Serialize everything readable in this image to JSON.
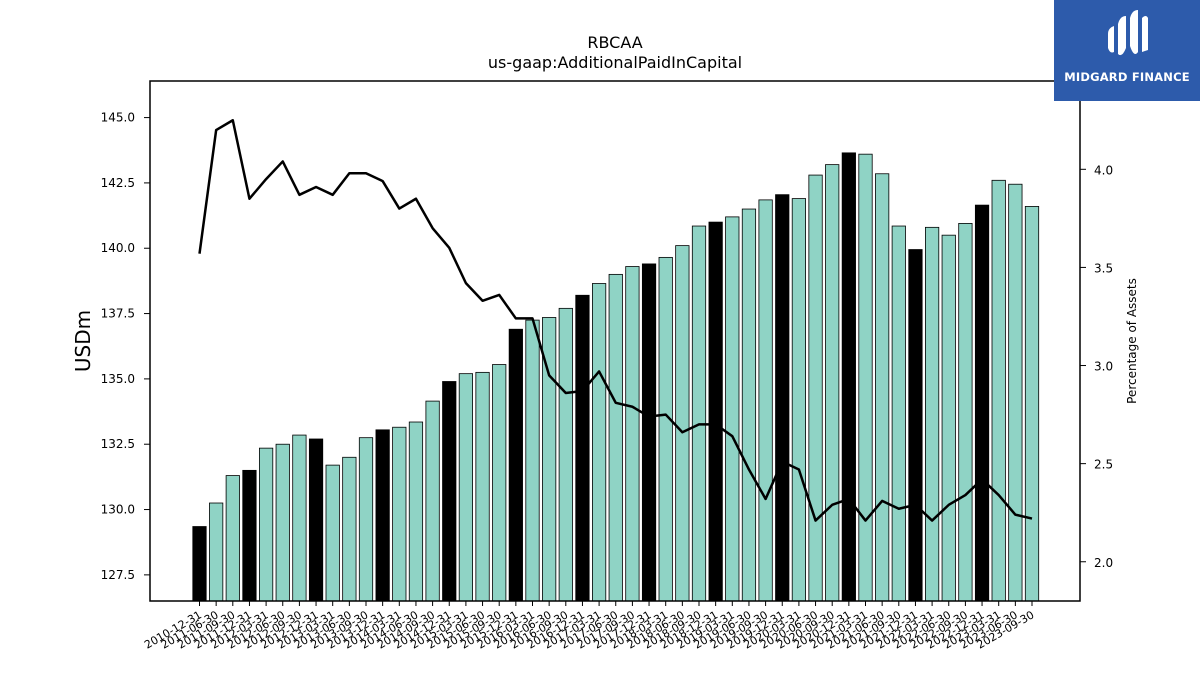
{
  "chart_data": {
    "type": "bar",
    "title": "RBCAA",
    "subtitle": "us-gaap:AdditionalPaidInCapital",
    "ylabel": "USDm",
    "y2label": "Percentage of Assets",
    "ylim": [
      126.5,
      146.4
    ],
    "y2lim": [
      1.8,
      4.45
    ],
    "yticks": [
      "127.5",
      "130.0",
      "132.5",
      "135.0",
      "137.5",
      "140.0",
      "142.5",
      "145.0"
    ],
    "y2ticks": [
      "2.0",
      "2.5",
      "3.0",
      "3.5",
      "4.0"
    ],
    "grid": false,
    "categories": [
      "2010-12-31",
      "2011-06-30",
      "2011-09-30",
      "2011-12-31",
      "2012-03-31",
      "2012-06-30",
      "2012-09-30",
      "2012-12-31",
      "2013-03-31",
      "2013-06-30",
      "2013-09-30",
      "2013-12-31",
      "2014-03-31",
      "2014-06-30",
      "2014-09-30",
      "2014-12-31",
      "2015-03-31",
      "2015-06-30",
      "2015-09-30",
      "2015-12-31",
      "2016-03-31",
      "2016-06-30",
      "2016-09-30",
      "2016-12-31",
      "2017-03-31",
      "2017-06-30",
      "2017-09-30",
      "2017-12-31",
      "2018-03-31",
      "2018-06-30",
      "2018-09-30",
      "2018-12-31",
      "2019-03-31",
      "2019-06-30",
      "2019-09-30",
      "2019-12-31",
      "2020-03-31",
      "2020-06-30",
      "2020-09-30",
      "2020-12-31",
      "2021-03-31",
      "2021-06-30",
      "2021-09-30",
      "2021-12-31",
      "2022-03-31",
      "2022-06-30",
      "2022-09-30",
      "2022-12-31",
      "2023-03-31",
      "2023-06-30",
      "2023-09-30"
    ],
    "series": [
      {
        "values": [
          129.35,
          130.25,
          131.3,
          131.5,
          132.35,
          132.5,
          132.85,
          132.7,
          131.7,
          132.0,
          132.75,
          133.05,
          133.15,
          133.35,
          134.15,
          134.9,
          135.2,
          135.25,
          135.55,
          136.9,
          137.25,
          137.35,
          137.7,
          138.2,
          138.65,
          139.0,
          139.3,
          139.4,
          139.65,
          140.1,
          140.85,
          141.0,
          141.2,
          141.5,
          141.85,
          142.05,
          141.9,
          142.8,
          143.2,
          143.65,
          143.6,
          142.85,
          140.85,
          139.95,
          140.8,
          140.5,
          140.95,
          141.65,
          142.6,
          142.45,
          141.6
        ],
        "highlight": [
          true,
          false,
          false,
          true,
          false,
          false,
          false,
          true,
          false,
          false,
          false,
          true,
          false,
          false,
          false,
          true,
          false,
          false,
          false,
          true,
          false,
          false,
          false,
          true,
          false,
          false,
          false,
          true,
          false,
          false,
          false,
          true,
          false,
          false,
          false,
          true,
          false,
          false,
          false,
          true,
          false,
          false,
          false,
          true,
          false,
          false,
          false,
          true,
          false,
          false,
          false
        ]
      },
      {
        "axis": "right",
        "type": "line",
        "values": [
          3.57,
          4.2,
          4.25,
          3.85,
          3.95,
          4.04,
          3.87,
          3.91,
          3.87,
          3.98,
          3.98,
          3.94,
          3.8,
          3.85,
          3.7,
          3.6,
          3.42,
          3.33,
          3.36,
          3.24,
          3.24,
          2.95,
          2.86,
          2.87,
          2.97,
          2.81,
          2.79,
          2.74,
          2.75,
          2.66,
          2.7,
          2.7,
          2.64,
          2.47,
          2.32,
          2.51,
          2.47,
          2.21,
          2.29,
          2.32,
          2.21,
          2.31,
          2.27,
          2.29,
          2.21,
          2.29,
          2.34,
          2.42,
          2.34,
          2.24,
          2.22
        ]
      }
    ],
    "colors": {
      "bar": "#8fd3c5",
      "bar_highlight": "#000000",
      "line": "#000000",
      "axis": "#000000"
    }
  },
  "logo": {
    "text": "MIDGARD FINANCE",
    "color": "#2d5bab"
  }
}
